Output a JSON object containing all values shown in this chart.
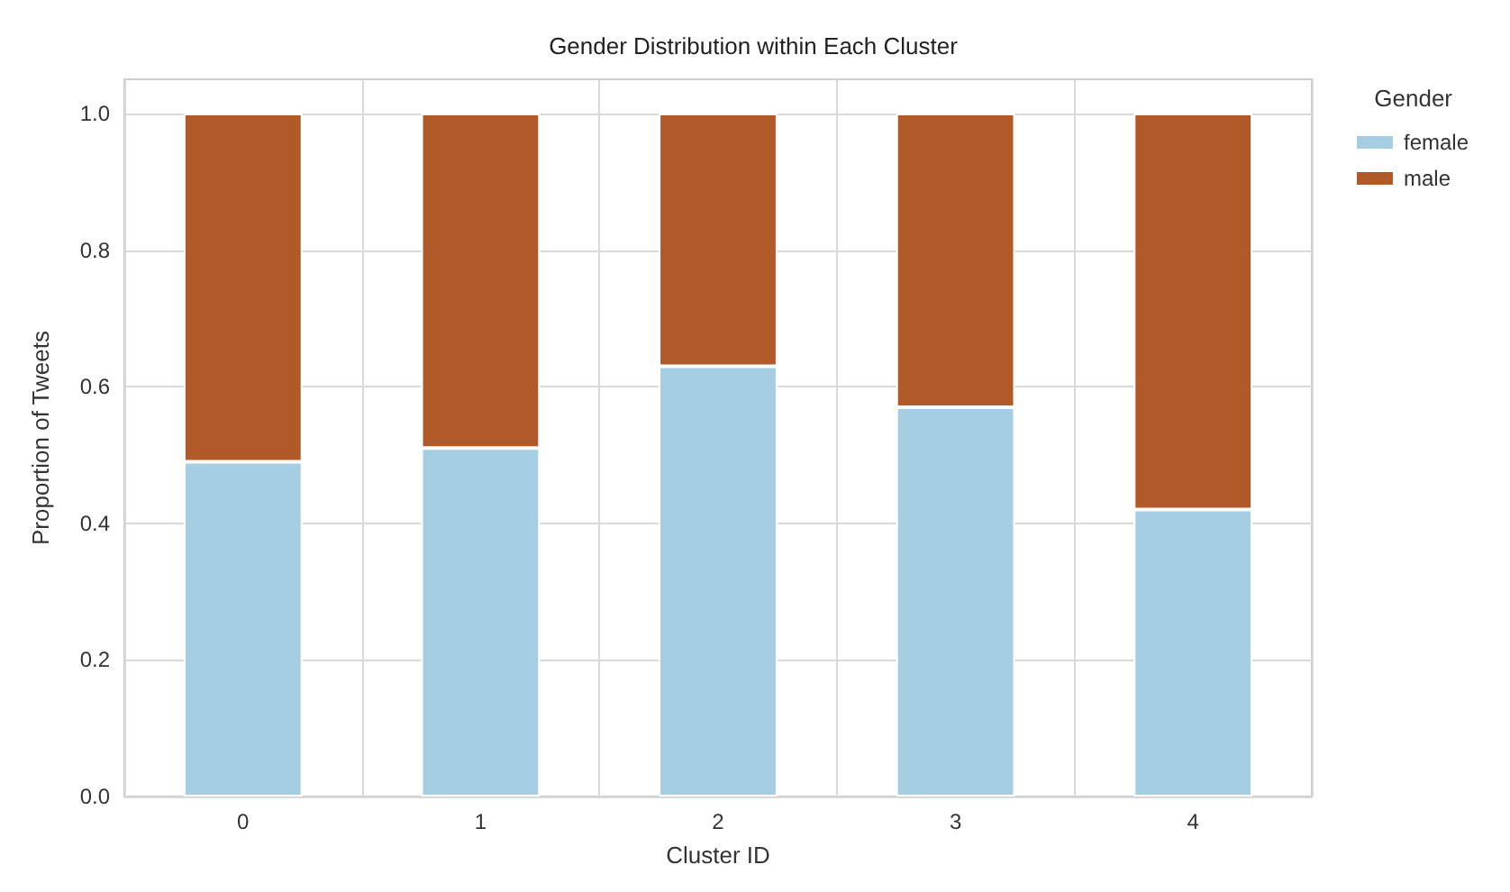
{
  "chart_data": {
    "type": "bar",
    "title": "Gender Distribution within Each Cluster",
    "xlabel": "Cluster ID",
    "ylabel": "Proportion of Tweets",
    "legend_title": "Gender",
    "categories": [
      "0",
      "1",
      "2",
      "3",
      "4"
    ],
    "series": [
      {
        "name": "female",
        "color": "#a6cee3",
        "values": [
          0.49,
          0.51,
          0.63,
          0.57,
          0.42
        ]
      },
      {
        "name": "male",
        "color": "#b15928",
        "values": [
          0.51,
          0.49,
          0.37,
          0.43,
          0.58
        ]
      }
    ],
    "stacked": true,
    "ylim": [
      0,
      1.05
    ],
    "yticks": [
      {
        "value": 0,
        "label": "0.0"
      },
      0.2,
      0.4,
      0.6,
      0.8,
      {
        "value": 1,
        "label": "1.0"
      }
    ],
    "grid": true,
    "legend": "top right"
  }
}
